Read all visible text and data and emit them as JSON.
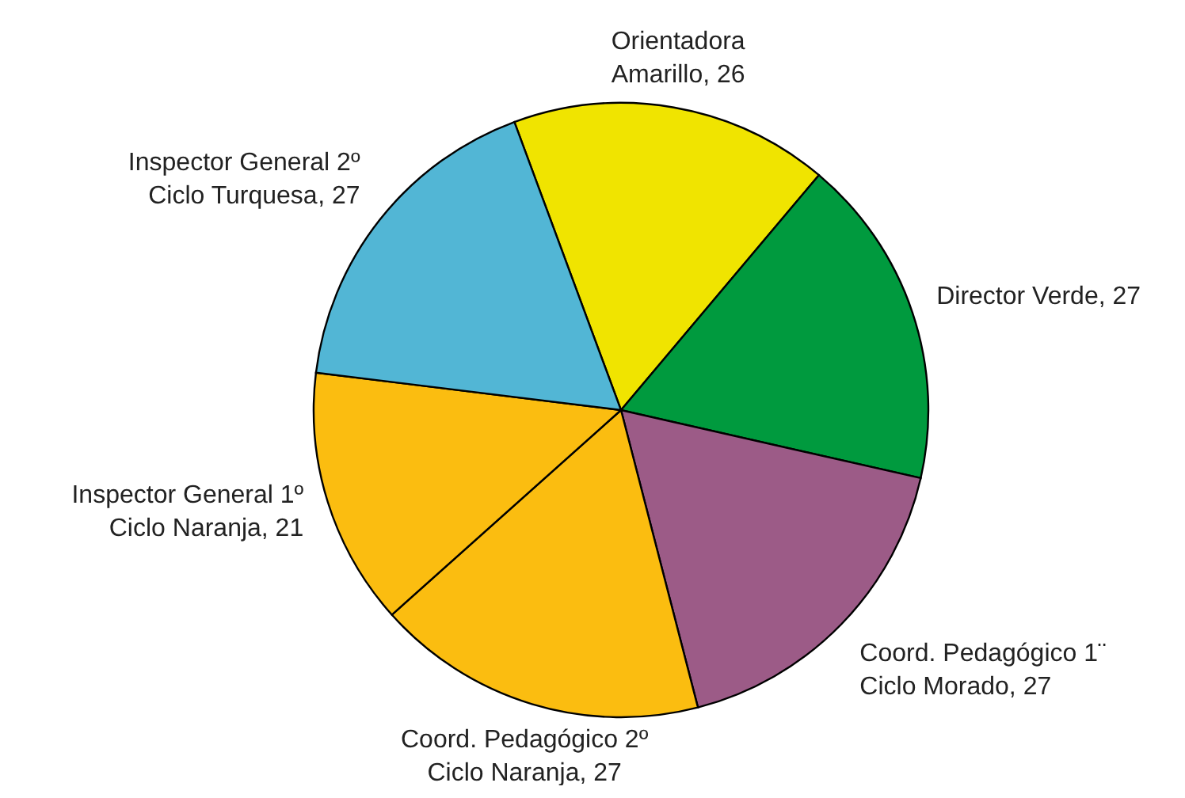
{
  "chart_data": {
    "type": "pie",
    "categories": [
      "Orientadora\nAmarillo",
      "Director Verde",
      "Coord. Pedagógico 1¨\nCiclo Morado",
      "Coord. Pedagógico 2º\nCiclo Naranja",
      "Inspector General 1º\nCiclo Naranja",
      "Inspector General 2º\nCiclo Turquesa"
    ],
    "values": [
      26,
      27,
      27,
      27,
      21,
      27
    ],
    "colors": [
      "#f0e400",
      "#009a3e",
      "#9c5b87",
      "#fbbd10",
      "#fbbd10",
      "#52b6d5"
    ],
    "value_labels": [
      ", 26",
      ", 27",
      ", 27",
      ", 27",
      ", 21",
      ", 27"
    ]
  }
}
